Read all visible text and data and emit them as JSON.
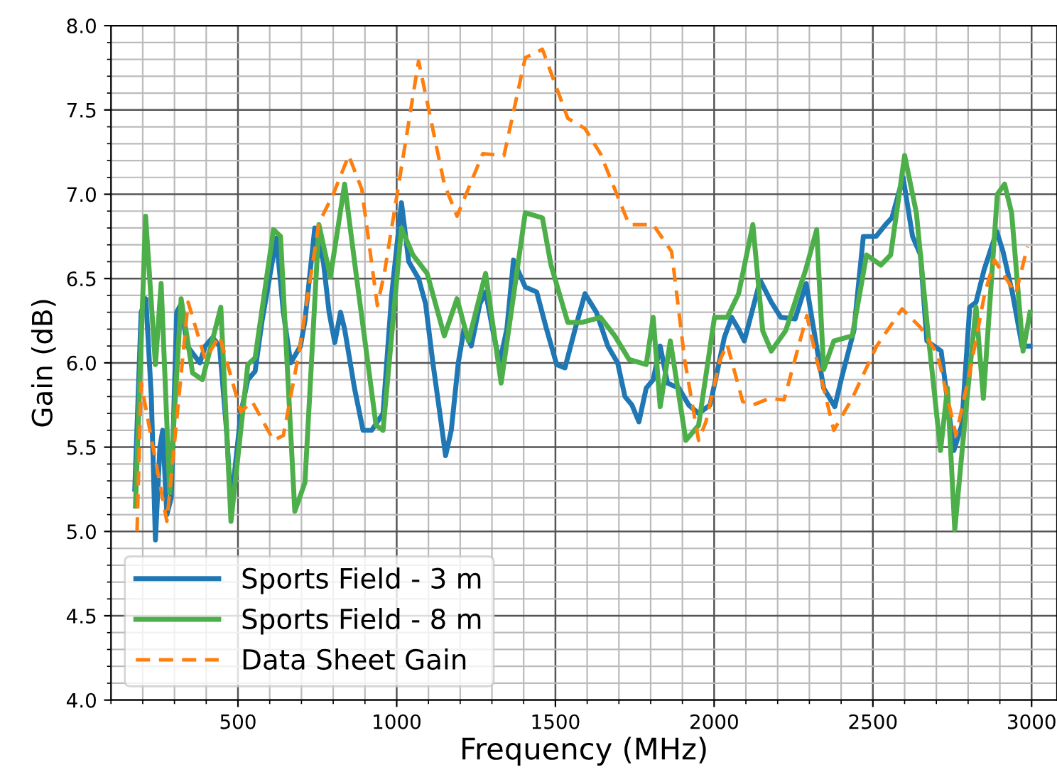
{
  "chart_data": {
    "type": "line",
    "xlabel": "Frequency (MHz)",
    "ylabel": "Gain (dB)",
    "xlim": [
      100,
      3080
    ],
    "ylim": [
      4,
      8
    ],
    "xticks": [
      500,
      1000,
      1500,
      2000,
      2500,
      3000
    ],
    "yticks": [
      {
        "value": 4,
        "label": "4.0"
      },
      4.5,
      {
        "value": 5,
        "label": "5.0"
      },
      5.5,
      {
        "value": 6,
        "label": "6.0"
      },
      6.5,
      {
        "value": 7,
        "label": "7.0"
      },
      7.5,
      {
        "value": 8,
        "label": "8.0"
      }
    ],
    "grid": true,
    "legend": "bottom left",
    "series": [
      {
        "name": "Sports Field - 3 m",
        "color": "#1f77b4",
        "line_style": "solid",
        "x": [
          175,
          195,
          210,
          227,
          240,
          254,
          263,
          276,
          290,
          307,
          321,
          340,
          380,
          397,
          420,
          442,
          464,
          478,
          509,
          531,
          554,
          576,
          599,
          621,
          643,
          666,
          697,
          711,
          742,
          769,
          787,
          805,
          823,
          836,
          867,
          894,
          921,
          957,
          984,
          1015,
          1038,
          1069,
          1091,
          1114,
          1136,
          1154,
          1172,
          1194,
          1212,
          1235,
          1262,
          1280,
          1302,
          1324,
          1347,
          1368,
          1405,
          1441,
          1472,
          1504,
          1530,
          1562,
          1593,
          1629,
          1665,
          1696,
          1719,
          1741,
          1763,
          1786,
          1808,
          1830,
          1853,
          1889,
          1920,
          1951,
          1987,
          2010,
          2032,
          2055,
          2077,
          2095,
          2145,
          2180,
          2210,
          2255,
          2290,
          2310,
          2345,
          2380,
          2400,
          2440,
          2470,
          2510,
          2540,
          2560,
          2595,
          2625,
          2650,
          2670,
          2715,
          2755,
          2780,
          2805,
          2825,
          2850,
          2890,
          2910,
          2940,
          2970,
          2995
        ],
        "values": [
          5.25,
          6.3,
          6.38,
          5.8,
          4.95,
          5.5,
          5.6,
          5.1,
          5.2,
          6.3,
          6.35,
          6.1,
          6.0,
          6.1,
          6.15,
          6.1,
          5.6,
          5.15,
          5.7,
          5.9,
          5.95,
          6.25,
          6.5,
          6.74,
          6.3,
          6.0,
          6.1,
          6.25,
          6.8,
          6.6,
          6.3,
          6.12,
          6.3,
          6.2,
          5.85,
          5.6,
          5.6,
          5.7,
          6.4,
          6.95,
          6.6,
          6.5,
          6.35,
          6.0,
          5.7,
          5.45,
          5.6,
          6.0,
          6.2,
          6.1,
          6.35,
          6.42,
          6.2,
          6.0,
          6.2,
          6.61,
          6.45,
          6.42,
          6.2,
          5.99,
          5.97,
          6.2,
          6.41,
          6.3,
          6.1,
          6.0,
          5.8,
          5.75,
          5.65,
          5.85,
          5.9,
          6.1,
          5.88,
          5.85,
          5.75,
          5.7,
          5.75,
          5.95,
          6.15,
          6.27,
          6.2,
          6.13,
          6.49,
          6.36,
          6.27,
          6.26,
          6.47,
          6.24,
          5.85,
          5.74,
          5.9,
          6.19,
          6.75,
          6.75,
          6.82,
          6.86,
          7.1,
          6.75,
          6.64,
          6.13,
          6.07,
          5.48,
          5.63,
          6.33,
          6.36,
          6.55,
          6.78,
          6.66,
          6.41,
          6.1,
          6.1
        ]
      },
      {
        "name": "Sports Field - 8 m",
        "color": "#4daf4a",
        "line_style": "solid",
        "x": [
          177,
          209,
          240,
          258,
          285,
          321,
          357,
          388,
          446,
          478,
          531,
          554,
          612,
          634,
          679,
          711,
          755,
          791,
          836,
          872,
          935,
          957,
          1015,
          1051,
          1096,
          1150,
          1190,
          1226,
          1280,
          1329,
          1405,
          1459,
          1486,
          1539,
          1584,
          1642,
          1687,
          1732,
          1786,
          1808,
          1830,
          1862,
          1911,
          1951,
          2001,
          2041,
          2077,
          2122,
          2153,
          2180,
          2225,
          2288,
          2323,
          2345,
          2377,
          2435,
          2480,
          2525,
          2556,
          2600,
          2637,
          2673,
          2713,
          2735,
          2758,
          2794,
          2825,
          2848,
          2892,
          2915,
          2937,
          2973,
          2995
        ],
        "values": [
          5.15,
          6.87,
          5.99,
          6.47,
          5.23,
          6.38,
          5.94,
          5.9,
          6.33,
          5.06,
          5.99,
          6.03,
          6.79,
          6.75,
          5.12,
          5.29,
          6.82,
          6.51,
          7.06,
          6.53,
          5.63,
          5.6,
          6.8,
          6.64,
          6.53,
          6.16,
          6.38,
          6.13,
          6.53,
          5.88,
          6.89,
          6.86,
          6.58,
          6.24,
          6.24,
          6.27,
          6.16,
          6.02,
          5.99,
          6.27,
          5.74,
          6.13,
          5.54,
          5.63,
          6.27,
          6.27,
          6.41,
          6.82,
          6.19,
          6.07,
          6.19,
          6.55,
          6.79,
          5.96,
          6.13,
          6.16,
          6.64,
          6.58,
          6.64,
          7.23,
          6.89,
          6.19,
          5.48,
          5.85,
          5.01,
          5.74,
          6.33,
          5.79,
          7.0,
          7.06,
          6.89,
          6.07,
          6.3
        ]
      },
      {
        "name": "Data Sheet Gain",
        "color": "#ff7f0e",
        "line_style": "dashed",
        "x": [
          182,
          195,
          276,
          343,
          397,
          442,
          509,
          545,
          612,
          643,
          693,
          755,
          800,
          849,
          890,
          939,
          961,
          1069,
          1150,
          1190,
          1271,
          1338,
          1405,
          1459,
          1539,
          1593,
          1642,
          1732,
          1808,
          1866,
          1907,
          1951,
          1974,
          2019,
          2041,
          2090,
          2122,
          2175,
          2220,
          2292,
          2323,
          2377,
          2435,
          2512,
          2592,
          2650,
          2704,
          2762,
          2807,
          2852,
          2883,
          2950,
          2987
        ],
        "values": [
          5.0,
          5.88,
          5.06,
          6.36,
          6.02,
          6.16,
          5.71,
          5.77,
          5.54,
          5.57,
          6.07,
          6.83,
          7.0,
          7.23,
          7.03,
          6.34,
          6.53,
          7.79,
          7.06,
          6.87,
          7.24,
          7.23,
          7.81,
          7.86,
          7.45,
          7.39,
          7.24,
          6.82,
          6.82,
          6.66,
          6.02,
          5.54,
          5.65,
          6.02,
          6.11,
          5.77,
          5.75,
          5.79,
          5.78,
          6.28,
          6.02,
          5.6,
          5.79,
          6.1,
          6.32,
          6.21,
          6.05,
          5.57,
          5.96,
          6.41,
          6.61,
          6.41,
          6.69
        ]
      }
    ]
  }
}
